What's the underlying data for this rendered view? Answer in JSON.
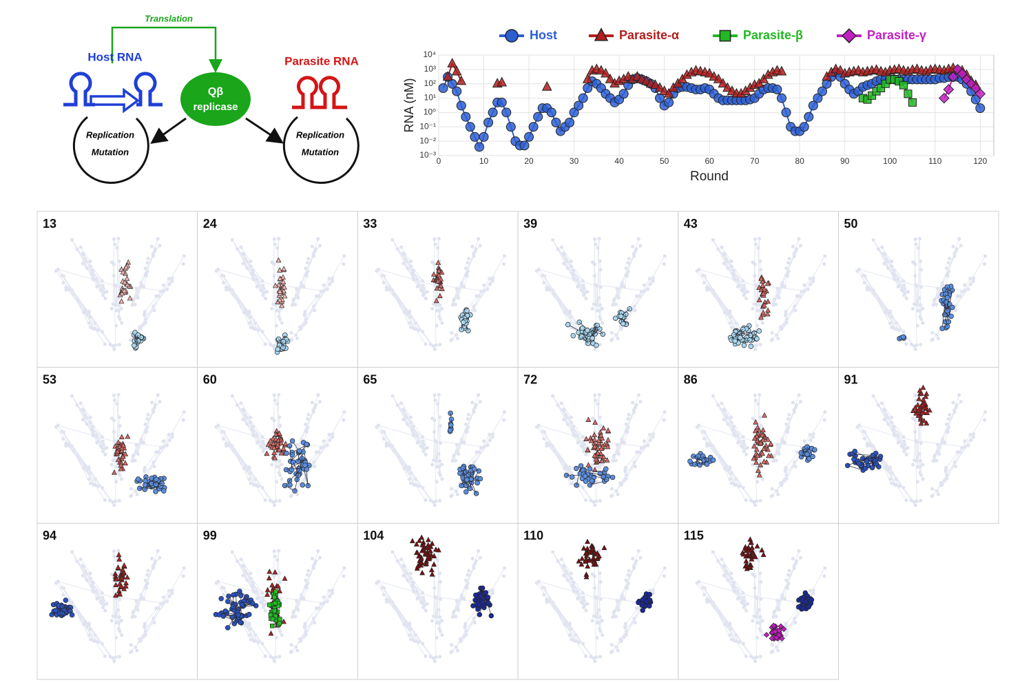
{
  "diagram": {
    "translation": "Translation",
    "host_label": "Host RNA",
    "parasite_label": "Parasite RNA",
    "replicase": [
      "Qβ",
      "replicase"
    ],
    "host_cycle": [
      "Replication",
      "Mutation"
    ],
    "parasite_cycle": [
      "Replication",
      "Mutation"
    ]
  },
  "chart_data": {
    "type": "line",
    "xlabel": "Round",
    "ylabel": "RNA (nM)",
    "log_y": true,
    "grid": true,
    "legend": "top",
    "xlim": [
      0,
      123
    ],
    "xticks": [
      0,
      10,
      20,
      30,
      40,
      50,
      60,
      70,
      80,
      90,
      100,
      110,
      120
    ],
    "ylim": [
      0.001,
      10000
    ],
    "yticks": [
      {
        "value": 0.001,
        "label": "10⁻³"
      },
      {
        "value": 0.01,
        "label": "10⁻²"
      },
      {
        "value": 0.1,
        "label": "10⁻¹"
      },
      {
        "value": 1,
        "label": "10⁰"
      },
      {
        "value": 10,
        "label": "10¹"
      },
      {
        "value": 100,
        "label": "10²"
      },
      {
        "value": 1000,
        "label": "10³"
      },
      {
        "value": 10000,
        "label": "10⁴"
      }
    ],
    "x": [
      1,
      2,
      3,
      4,
      5,
      6,
      7,
      8,
      9,
      10,
      11,
      12,
      13,
      14,
      15,
      16,
      17,
      18,
      19,
      20,
      21,
      22,
      23,
      24,
      25,
      26,
      27,
      28,
      29,
      30,
      31,
      32,
      33,
      34,
      35,
      36,
      37,
      38,
      39,
      40,
      41,
      42,
      43,
      44,
      45,
      46,
      47,
      48,
      49,
      50,
      51,
      52,
      53,
      54,
      55,
      56,
      57,
      58,
      59,
      60,
      61,
      62,
      63,
      64,
      65,
      66,
      67,
      68,
      69,
      70,
      71,
      72,
      73,
      74,
      75,
      76,
      77,
      78,
      79,
      80,
      81,
      82,
      83,
      84,
      85,
      86,
      87,
      88,
      89,
      90,
      91,
      92,
      93,
      94,
      95,
      96,
      97,
      98,
      99,
      100,
      101,
      102,
      103,
      104,
      105,
      106,
      107,
      108,
      109,
      110,
      111,
      112,
      113,
      114,
      115,
      116,
      117,
      118,
      119,
      120
    ],
    "series": [
      {
        "name": "Host",
        "color": "#2d5fd3",
        "marker": "circle",
        "values": [
          50,
          300,
          100,
          30,
          3,
          0.5,
          0.1,
          0.02,
          0.004,
          0.02,
          0.2,
          1,
          5,
          5,
          1,
          0.1,
          0.01,
          0.005,
          0.005,
          0.02,
          0.1,
          0.5,
          2,
          2,
          1,
          0.2,
          0.05,
          0.1,
          0.2,
          1,
          3,
          10,
          50,
          150,
          100,
          50,
          20,
          10,
          5,
          8,
          20,
          80,
          200,
          250,
          200,
          150,
          100,
          50,
          10,
          3,
          5,
          20,
          50,
          60,
          60,
          50,
          40,
          40,
          50,
          40,
          20,
          10,
          7,
          7,
          7,
          7,
          7,
          7,
          8,
          10,
          20,
          40,
          50,
          50,
          40,
          10,
          1,
          0.1,
          0.05,
          0.05,
          0.1,
          0.5,
          3,
          10,
          30,
          100,
          300,
          600,
          300,
          100,
          40,
          20,
          30,
          60,
          80,
          100,
          150,
          200,
          200,
          200,
          200,
          200,
          200,
          200,
          200,
          200,
          200,
          200,
          200,
          200,
          250,
          250,
          300,
          300,
          300,
          200,
          100,
          30,
          8,
          2
        ]
      },
      {
        "name": "Parasite-α",
        "color": "#b41e1e",
        "marker": "triangle",
        "values": [
          null,
          300,
          2500,
          700,
          150,
          null,
          null,
          null,
          null,
          null,
          null,
          null,
          100,
          120,
          null,
          null,
          null,
          null,
          null,
          null,
          null,
          null,
          null,
          60,
          null,
          null,
          null,
          null,
          null,
          null,
          null,
          null,
          200,
          800,
          1000,
          800,
          500,
          200,
          100,
          150,
          200,
          300,
          200,
          300,
          200,
          150,
          100,
          80,
          50,
          30,
          20,
          50,
          100,
          200,
          400,
          600,
          800,
          700,
          600,
          500,
          300,
          200,
          100,
          50,
          30,
          20,
          20,
          30,
          50,
          80,
          100,
          200,
          400,
          600,
          800,
          700,
          null,
          null,
          null,
          null,
          null,
          null,
          null,
          null,
          null,
          300,
          600,
          1000,
          800,
          500,
          600,
          700,
          800,
          600,
          700,
          800,
          900,
          700,
          600,
          800,
          900,
          1000,
          800,
          700,
          900,
          1000,
          800,
          700,
          900,
          1000,
          900,
          800,
          1000,
          1200,
          900,
          800,
          400,
          150,
          80,
          null
        ]
      },
      {
        "name": "Parasite-β",
        "color": "#22b822",
        "marker": "square",
        "values": [
          null,
          null,
          null,
          null,
          null,
          null,
          null,
          null,
          null,
          null,
          null,
          null,
          null,
          null,
          null,
          null,
          null,
          null,
          null,
          null,
          null,
          null,
          null,
          null,
          null,
          null,
          null,
          null,
          null,
          null,
          null,
          null,
          null,
          null,
          null,
          null,
          null,
          null,
          null,
          null,
          null,
          null,
          null,
          null,
          null,
          null,
          null,
          null,
          null,
          null,
          null,
          null,
          null,
          null,
          null,
          null,
          null,
          null,
          null,
          null,
          null,
          null,
          null,
          null,
          null,
          null,
          null,
          null,
          null,
          null,
          null,
          null,
          null,
          null,
          null,
          null,
          null,
          null,
          null,
          null,
          null,
          null,
          null,
          null,
          null,
          null,
          null,
          null,
          null,
          null,
          null,
          null,
          null,
          10,
          8,
          15,
          30,
          50,
          100,
          200,
          200,
          150,
          80,
          20,
          5,
          null,
          null,
          null,
          null,
          null,
          null,
          null,
          null,
          null,
          null,
          null,
          null,
          null,
          null,
          null
        ]
      },
      {
        "name": "Parasite-γ",
        "color": "#c21fc2",
        "marker": "diamond",
        "values": [
          null,
          null,
          null,
          null,
          null,
          null,
          null,
          null,
          null,
          null,
          null,
          null,
          null,
          null,
          null,
          null,
          null,
          null,
          null,
          null,
          null,
          null,
          null,
          null,
          null,
          null,
          null,
          null,
          null,
          null,
          null,
          null,
          null,
          null,
          null,
          null,
          null,
          null,
          null,
          null,
          null,
          null,
          null,
          null,
          null,
          null,
          null,
          null,
          null,
          null,
          null,
          null,
          null,
          null,
          null,
          null,
          null,
          null,
          null,
          null,
          null,
          null,
          null,
          null,
          null,
          null,
          null,
          null,
          null,
          null,
          null,
          null,
          null,
          null,
          null,
          null,
          null,
          null,
          null,
          null,
          null,
          null,
          null,
          null,
          null,
          null,
          null,
          null,
          null,
          null,
          null,
          null,
          null,
          null,
          null,
          null,
          null,
          null,
          null,
          null,
          null,
          null,
          null,
          null,
          null,
          null,
          null,
          null,
          null,
          null,
          null,
          10,
          40,
          300,
          1000,
          500,
          200,
          100,
          50,
          20
        ]
      }
    ]
  },
  "panels": [
    "13",
    "24",
    "33",
    "39",
    "43",
    "50",
    "53",
    "60",
    "65",
    "72",
    "86",
    "91",
    "94",
    "99",
    "104",
    "110",
    "115"
  ]
}
